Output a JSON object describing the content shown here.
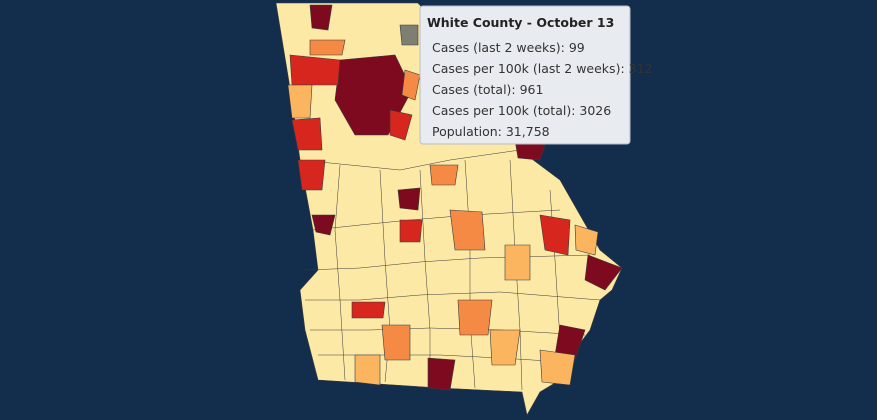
{
  "tooltip": {
    "title": "White County - October 13",
    "rows": [
      "Cases (last 2 weeks): 99",
      "Cases per 100k (last 2 weeks): 312",
      "Cases (total): 961",
      "Cases per 100k (total): 3026",
      "Population: 31,758"
    ]
  }
}
